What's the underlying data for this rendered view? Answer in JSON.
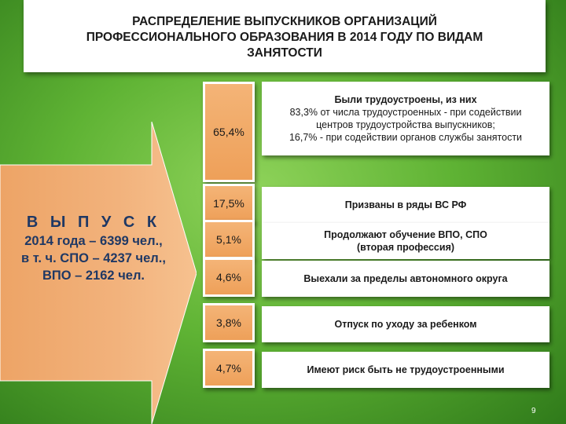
{
  "title": "РАСПРЕДЕЛЕНИЕ ВЫПУСКНИКОВ ОРГАНИЗАЦИЙ\nПРОФЕССИОНАЛЬНОГО ОБРАЗОВАНИЯ В 2014 ГОДУ ПО ВИДАМ\nЗАНЯТОСТИ",
  "arrow": {
    "heading": "В Ы П У С К",
    "lines": [
      "2014 года – 6399 чел.,",
      "в т. ч. СПО – 4237 чел.,",
      "ВПО – 2162 чел."
    ]
  },
  "items": [
    {
      "percent": "65,4%",
      "title": "Были трудоустроены, из них",
      "details": [
        "83,3% от числа трудоустроенных - при содействии",
        "центров трудоустройства выпускников;",
        "16,7% - при содействии органов службы занятости"
      ]
    },
    {
      "percent": "17,5%",
      "text": "Призваны в ряды ВС РФ"
    },
    {
      "percent": "5,1%",
      "text": "Продолжают обучение ВПО, СПО",
      "subtext": "(вторая профессия)"
    },
    {
      "percent": "4,6%",
      "text": "Выехали за пределы автономного округа"
    },
    {
      "percent": "3,8%",
      "text": "Отпуск по уходу за ребенком"
    },
    {
      "percent": "4,7%",
      "text": "Имеют риск быть не трудоустроенными"
    }
  ],
  "page_number": "9",
  "colors": {
    "arrow_fill": "#f0a868",
    "percent_fill": "#f4b477",
    "arrow_text": "#1f3864",
    "background": "#5fb334"
  }
}
